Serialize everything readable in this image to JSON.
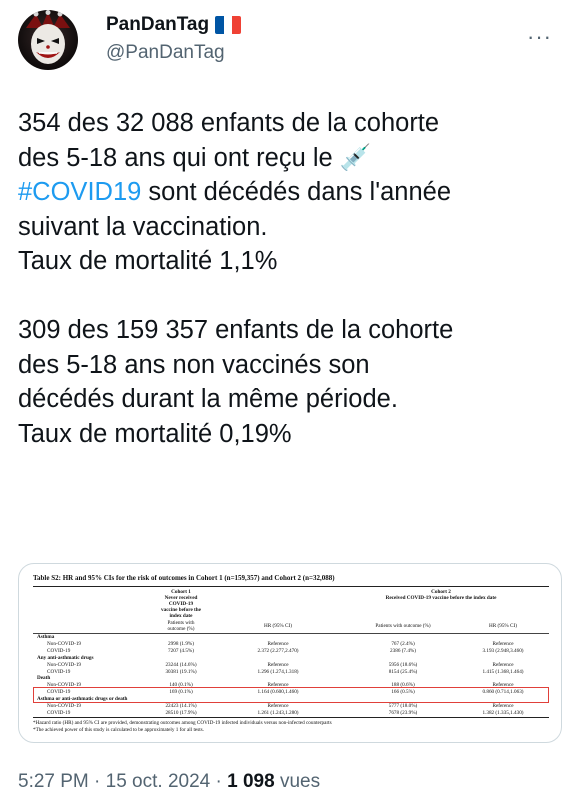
{
  "author": {
    "display_name": "PanDanTag",
    "handle": "@PanDanTag",
    "avatar_icon": "joker-avatar-icon",
    "flag_icon": "france-flag-icon"
  },
  "menu_icon": "more-horizontal-icon",
  "tweet": {
    "p1_a": "354 des 32 088 enfants de la cohorte\ndes 5-18 ans qui ont reçu le ",
    "syringe_emoji": "💉",
    "hashtag": "#COVID19",
    "p1_b": " sont décédés dans l'année\nsuivant la vaccination.\nTaux de mortalité 1,1%\n\n309 des 159 357 enfants de la cohorte\ndes 5-18 ans non vaccinés son\ndécédés durant la même période.\nTaux de mortalité 0,19%"
  },
  "embedded_table": {
    "title": "Table S2: HR and 95% CIs for the risk of outcomes in Cohort 1 (n=159,357) and Cohort 2 (n=32,088)",
    "cohort1_header": "Cohort 1\nNever received\nCOVID-19\nvaccine before the\nindex date",
    "cohort2_header": "Cohort 2\nReceived COVID-19 vaccine before the index date",
    "col_patients": "Patients with\noutcome (%)",
    "col_hr": "HR (95% CI)",
    "col_patients2": "Patients with outcome (%)",
    "col_hr2": "HR (95% CI)",
    "rows": [
      {
        "label": "Asthma",
        "bold": true,
        "c1": "",
        "c2": "",
        "c3": "",
        "c4": ""
      },
      {
        "label": "Non-COVID-19",
        "c1": "2998 (1.9%)",
        "c2": "Reference",
        "c3": "767 (2.4%)",
        "c4": "Reference"
      },
      {
        "label": "COVID-19",
        "c1": "7207 (4.5%)",
        "c2": "2.372 (2.277,2.470)",
        "c3": "2386 (7.4%)",
        "c4": "3.193 (2.948,3.460)"
      },
      {
        "label": "Any anti-asthmatic drugs",
        "bold": true,
        "c1": "",
        "c2": "",
        "c3": "",
        "c4": ""
      },
      {
        "label": "Non-COVID-19",
        "c1": "23244 (14.6%)",
        "c2": "Reference",
        "c3": "5956 (18.6%)",
        "c4": "Reference"
      },
      {
        "label": "COVID-19",
        "c1": "30381 (19.1%)",
        "c2": "1.296 (1.274,1.318)",
        "c3": "8154 (25.4%)",
        "c4": "1.415 (1.368,1.464)"
      },
      {
        "label": "Death",
        "bold": true,
        "c1": "",
        "c2": "",
        "c3": "",
        "c4": ""
      },
      {
        "label": "Non-COVID-19",
        "c1": "140 (0.1%)",
        "c2": "Reference",
        "c3": "188 (0.6%)",
        "c4": "Reference"
      },
      {
        "label": "COVID-19",
        "c1": "169 (0.1%)",
        "c2": "1.164 (0.600,1.460)",
        "c3": "166 (0.5%)",
        "c4": "0.860 (0.714,1.063)"
      },
      {
        "label": "Asthma or anti-asthmatic drugs or death",
        "bold": true,
        "c1": "",
        "c2": "",
        "c3": "",
        "c4": ""
      },
      {
        "label": "Non-COVID-19",
        "c1": "22423 (14.1%)",
        "c2": "Reference",
        "c3": "5777 (18.0%)",
        "c4": "Reference"
      },
      {
        "label": "COVID-19",
        "c1": "28510 (17.9%)",
        "c2": "1.261 (1.243,1.280)",
        "c3": "7678 (23.9%)",
        "c4": "1.382 (1.335,1.430)"
      }
    ],
    "note1": "*Hazard ratio (HR) and 95% CI are provided, demonstrating outcomes among COVID-19 infected individuals versus non-infected counterparts",
    "note2": "*The achieved power of this study is calculated to be approximately 1 for all tests.",
    "highlight_color": "#e0403a"
  },
  "meta": {
    "time_date": "5:27 PM · 15 oct. 2024 · ",
    "views_count": "1 098",
    "views_label": " vues"
  },
  "colors": {
    "text": "#0f1419",
    "secondary": "#536471",
    "link": "#1d9bf0",
    "border": "#cfd9de"
  }
}
